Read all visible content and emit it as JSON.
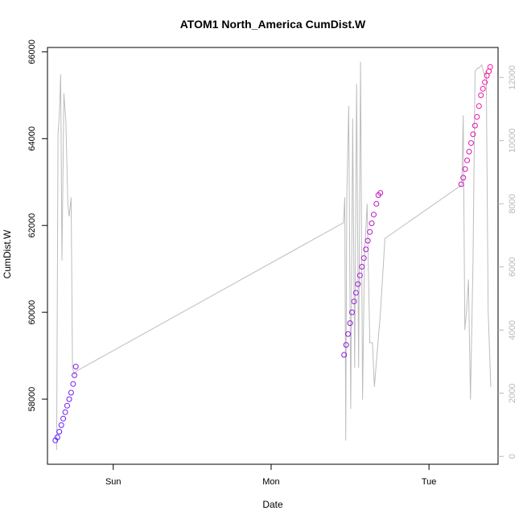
{
  "chart_data": {
    "type": "scatter",
    "title": "ATOM1 North_America CumDist.W",
    "xlabel": "Date",
    "ylabel": "CumDist.W",
    "x_ticks": [
      "Sun",
      "Mon",
      "Tue"
    ],
    "x_tick_hours": [
      24,
      48,
      72
    ],
    "xlim_hours": [
      14,
      82.5
    ],
    "ylim": [
      56500,
      66100
    ],
    "y_ticks": [
      58000,
      60000,
      62000,
      64000,
      66000
    ],
    "y2lim": [
      -250,
      12950
    ],
    "y2_ticks": [
      0,
      2000,
      4000,
      6000,
      8000,
      10000,
      12000
    ],
    "grid": false,
    "legend": "none",
    "colors": {
      "line": "#bdbdbd",
      "point_start": "#5b1dff",
      "point_end": "#ff0fa0",
      "right_axis": "#b8b8b8"
    },
    "series": [
      {
        "kind": "line",
        "axis": "right",
        "x": [
          15.4,
          15.6,
          15.8,
          16.0,
          16.2,
          16.5,
          16.8,
          17.1,
          17.3,
          17.6,
          17.8,
          18.1,
          18.4,
          59.0,
          59.2,
          59.35,
          59.5,
          59.8,
          60.1,
          60.4,
          60.7,
          61.0,
          61.3,
          61.6,
          61.9,
          62.2,
          62.6,
          63.0,
          63.4,
          63.7,
          64.2,
          64.6,
          65.3,
          77.0,
          77.2,
          77.45,
          77.7,
          78.0,
          78.3,
          78.7,
          79.0,
          79.4,
          79.6,
          80.0,
          80.4,
          80.7,
          81.0,
          81.4
        ],
        "y": [
          200,
          10200,
          10800,
          12100,
          6200,
          11500,
          10600,
          8000,
          7600,
          8200,
          2800,
          2600,
          2700,
          7400,
          8200,
          500,
          8200,
          11100,
          1500,
          10700,
          2800,
          11800,
          2800,
          12500,
          1800,
          6400,
          8000,
          3600,
          3600,
          2200,
          3500,
          4500,
          6900,
          8600,
          10800,
          4000,
          4600,
          5600,
          1800,
          6200,
          12200,
          12300,
          12300,
          12400,
          12100,
          12200,
          4600,
          2200
        ]
      },
      {
        "kind": "points",
        "axis": "left",
        "x": [
          15.2,
          15.5,
          15.8,
          16.1,
          16.4,
          16.7,
          17.0,
          17.3,
          17.6,
          17.9,
          18.1,
          18.3,
          59.1,
          59.4,
          59.7,
          60.0,
          60.3,
          60.6,
          60.9,
          61.2,
          61.5,
          61.8,
          62.1,
          62.4,
          62.7,
          63.0,
          63.3,
          63.6,
          64.0,
          64.3,
          64.6,
          76.9,
          77.2,
          77.5,
          77.8,
          78.1,
          78.4,
          78.7,
          79.0,
          79.3,
          79.6,
          79.9,
          80.2,
          80.5,
          80.8,
          81.1,
          81.3
        ],
        "y": [
          57050,
          57120,
          57250,
          57400,
          57550,
          57700,
          57850,
          58000,
          58150,
          58350,
          58550,
          58750,
          59020,
          59250,
          59500,
          59750,
          60000,
          60250,
          60450,
          60650,
          60850,
          61050,
          61250,
          61450,
          61650,
          61850,
          62050,
          62250,
          62500,
          62700,
          62750,
          62950,
          63100,
          63300,
          63500,
          63700,
          63900,
          64100,
          64300,
          64500,
          64750,
          65000,
          65150,
          65300,
          65450,
          65550,
          65650
        ]
      }
    ]
  }
}
